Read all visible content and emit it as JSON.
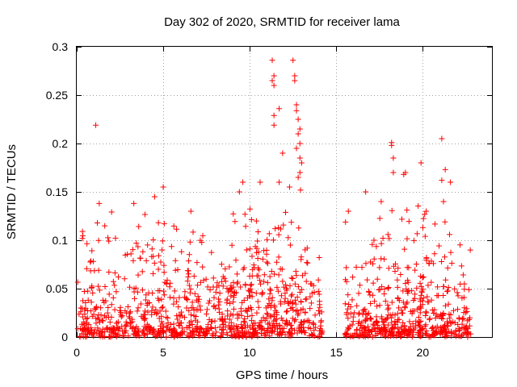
{
  "chart_data": {
    "type": "scatter",
    "title": "Day 302 of 2020, SRMTID for receiver lama",
    "xlabel": "GPS time / hours",
    "ylabel": "SRMTID / TECUs",
    "xlim": [
      0,
      24
    ],
    "ylim": [
      0,
      0.3
    ],
    "xticks": [
      0,
      5,
      10,
      15,
      20
    ],
    "yticks": [
      0,
      0.05,
      0.1,
      0.15,
      0.2,
      0.25,
      0.3
    ],
    "xtick_labels": [
      "0",
      "5",
      "10",
      "15",
      "20"
    ],
    "ytick_labels": [
      "0",
      "0.05",
      "0.1",
      "0.15",
      "0.2",
      "0.25",
      "0.3"
    ],
    "grid": true,
    "marker": "+",
    "color": "#ff0000",
    "data_gap_hours": [
      14.2,
      15.5
    ],
    "seed": 302,
    "series": [
      {
        "name": "SRMTID",
        "points": [
          [
            1.1,
            0.219
          ],
          [
            11.3,
            0.286
          ],
          [
            12.5,
            0.286
          ],
          [
            11.4,
            0.27
          ],
          [
            12.6,
            0.27
          ],
          [
            11.3,
            0.265
          ],
          [
            12.6,
            0.265
          ],
          [
            11.4,
            0.26
          ],
          [
            11.7,
            0.236
          ],
          [
            12.7,
            0.24
          ],
          [
            12.7,
            0.234
          ],
          [
            11.4,
            0.229
          ],
          [
            12.8,
            0.225
          ],
          [
            11.4,
            0.219
          ],
          [
            12.9,
            0.215
          ],
          [
            12.8,
            0.21
          ],
          [
            12.9,
            0.2
          ],
          [
            12.7,
            0.195
          ],
          [
            12.9,
            0.185
          ],
          [
            13.0,
            0.18
          ],
          [
            11.9,
            0.19
          ],
          [
            12.9,
            0.17
          ],
          [
            12.8,
            0.165
          ],
          [
            18.2,
            0.201
          ],
          [
            18.2,
            0.198
          ],
          [
            18.3,
            0.185
          ],
          [
            18.3,
            0.17
          ],
          [
            19.0,
            0.17
          ],
          [
            18.9,
            0.168
          ],
          [
            19.9,
            0.18
          ],
          [
            21.1,
            0.205
          ],
          [
            21.3,
            0.173
          ],
          [
            21.1,
            0.162
          ],
          [
            21.6,
            0.16
          ],
          [
            5.0,
            0.155
          ],
          [
            4.5,
            0.145
          ],
          [
            9.6,
            0.16
          ],
          [
            9.4,
            0.15
          ],
          [
            10.6,
            0.16
          ],
          [
            11.7,
            0.16
          ],
          [
            12.3,
            0.155
          ],
          [
            21.2,
            0.14
          ],
          [
            16.7,
            0.15
          ],
          [
            17.6,
            0.14
          ],
          [
            20.2,
            0.13
          ],
          [
            1.3,
            0.138
          ],
          [
            3.3,
            0.138
          ],
          [
            6.6,
            0.13
          ],
          [
            15.7,
            0.13
          ]
        ]
      }
    ],
    "density_profile": [
      {
        "x0": 0.0,
        "x1": 1.0,
        "n": 70,
        "scale": 0.045,
        "ymax": 0.12
      },
      {
        "x0": 1.0,
        "x1": 2.0,
        "n": 60,
        "scale": 0.05,
        "ymax": 0.135
      },
      {
        "x0": 2.0,
        "x1": 3.0,
        "n": 60,
        "scale": 0.04,
        "ymax": 0.13
      },
      {
        "x0": 3.0,
        "x1": 4.0,
        "n": 65,
        "scale": 0.045,
        "ymax": 0.13
      },
      {
        "x0": 4.0,
        "x1": 5.0,
        "n": 75,
        "scale": 0.05,
        "ymax": 0.14
      },
      {
        "x0": 5.0,
        "x1": 6.0,
        "n": 70,
        "scale": 0.045,
        "ymax": 0.12
      },
      {
        "x0": 6.0,
        "x1": 7.0,
        "n": 70,
        "scale": 0.05,
        "ymax": 0.13
      },
      {
        "x0": 7.0,
        "x1": 8.0,
        "n": 60,
        "scale": 0.045,
        "ymax": 0.11
      },
      {
        "x0": 8.0,
        "x1": 9.0,
        "n": 70,
        "scale": 0.05,
        "ymax": 0.12
      },
      {
        "x0": 9.0,
        "x1": 10.0,
        "n": 85,
        "scale": 0.06,
        "ymax": 0.15
      },
      {
        "x0": 10.0,
        "x1": 11.0,
        "n": 90,
        "scale": 0.06,
        "ymax": 0.15
      },
      {
        "x0": 11.0,
        "x1": 12.0,
        "n": 85,
        "scale": 0.06,
        "ymax": 0.16
      },
      {
        "x0": 12.0,
        "x1": 13.0,
        "n": 80,
        "scale": 0.055,
        "ymax": 0.16
      },
      {
        "x0": 13.0,
        "x1": 14.2,
        "n": 70,
        "scale": 0.045,
        "ymax": 0.12
      },
      {
        "x0": 15.5,
        "x1": 16.5,
        "n": 60,
        "scale": 0.04,
        "ymax": 0.13
      },
      {
        "x0": 16.5,
        "x1": 17.5,
        "n": 75,
        "scale": 0.045,
        "ymax": 0.14
      },
      {
        "x0": 17.5,
        "x1": 18.5,
        "n": 85,
        "scale": 0.055,
        "ymax": 0.15
      },
      {
        "x0": 18.5,
        "x1": 19.5,
        "n": 85,
        "scale": 0.06,
        "ymax": 0.14
      },
      {
        "x0": 19.5,
        "x1": 20.5,
        "n": 80,
        "scale": 0.05,
        "ymax": 0.14
      },
      {
        "x0": 20.5,
        "x1": 21.5,
        "n": 80,
        "scale": 0.045,
        "ymax": 0.14
      },
      {
        "x0": 21.5,
        "x1": 22.8,
        "n": 75,
        "scale": 0.04,
        "ymax": 0.13
      }
    ]
  }
}
